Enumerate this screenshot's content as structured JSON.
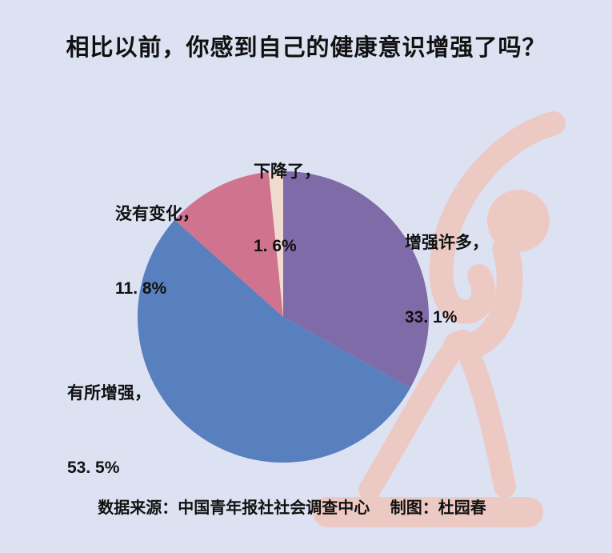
{
  "title": "相比以前，你感到自己的健康意识增强了吗？",
  "source_credit": "数据来源：中国青年报社社会调查中心　 制图：杜园春",
  "colors": {
    "background": "#dce2f2",
    "text": "#111111",
    "figure": "#edc9c4"
  },
  "chart_data": {
    "type": "pie",
    "title": "相比以前，你感到自己的健康意识增强了吗？",
    "source": "数据来源：中国青年报社社会调查中心",
    "credit": "制图：杜园春",
    "start_angle_deg": 0,
    "direction": "clockwise",
    "legend": "none",
    "labels_style": "two-line labels placed around pie, no leader lines",
    "slices": [
      {
        "label": "增强许多，",
        "pct_text": "33. 1%",
        "value": 33.1,
        "color": "#7e6ba7"
      },
      {
        "label": "有所增强，",
        "pct_text": "53. 5%",
        "value": 53.5,
        "color": "#587fbe"
      },
      {
        "label": "没有变化，",
        "pct_text": "11. 8%",
        "value": 11.8,
        "color": "#d0738e"
      },
      {
        "label": "下降了，",
        "pct_text": "1. 6%",
        "value": 1.6,
        "color": "#f0dcce"
      }
    ]
  }
}
